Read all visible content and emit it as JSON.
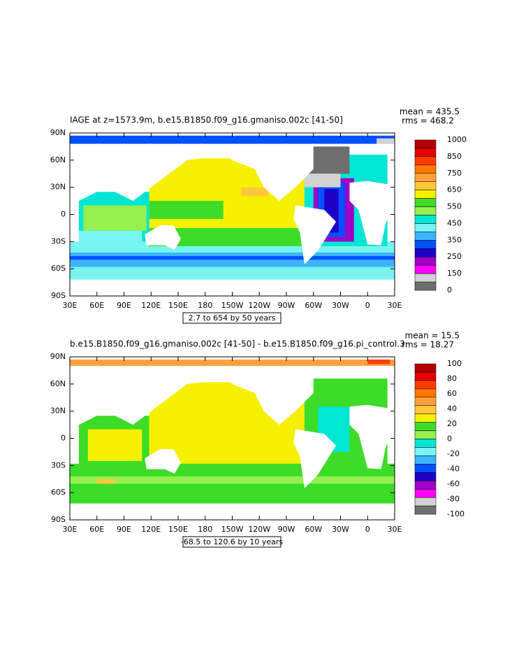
{
  "panels": [
    {
      "title": "IAGE at z=1573.9m, b.e15.B1850.f09_g16.gmaniso.002c [41-50]",
      "mean": "mean = 435.5",
      "rms": "rms = 468.2",
      "lat_labels": [
        "90N",
        "60N",
        "30N",
        "0",
        "30S",
        "60S",
        "90S"
      ],
      "lon_labels": [
        "30E",
        "60E",
        "90E",
        "120E",
        "150E",
        "180",
        "150W",
        "120W",
        "90W",
        "60W",
        "30W",
        "0",
        "30E"
      ],
      "info": "2.7 to 654 by 50 years",
      "colorbar_labels": [
        "1000",
        "850",
        "750",
        "650",
        "550",
        "450",
        "350",
        "250",
        "150",
        "0"
      ],
      "colors": [
        "#b40000",
        "#e60000",
        "#ff3c00",
        "#ff7800",
        "#ffa03c",
        "#ffc83c",
        "#f5f000",
        "#3cdc28",
        "#96f050",
        "#00e6d2",
        "#78f5f0",
        "#3cb4ff",
        "#0050ff",
        "#1e00c8",
        "#a000c8",
        "#ff00ff",
        "#d2d2d2",
        "#6e6e6e"
      ]
    },
    {
      "title": "b.e15.B1850.f09_g16.gmaniso.002c [41-50] - b.e15.B1850.f09_g16.pi_control.3",
      "mean": "mean = 15.5",
      "rms": "rms = 18.27",
      "lat_labels": [
        "90N",
        "60N",
        "30N",
        "0",
        "30S",
        "60S",
        "90S"
      ],
      "lon_labels": [
        "30E",
        "60E",
        "90E",
        "120E",
        "150E",
        "180",
        "150W",
        "120W",
        "90W",
        "60W",
        "30W",
        "0",
        "30E"
      ],
      "info": "-68.5 to 120.6 by 10 years",
      "colorbar_labels": [
        "100",
        "80",
        "60",
        "40",
        "20",
        "0",
        "-20",
        "-40",
        "-60",
        "-80",
        "-100"
      ],
      "colors": [
        "#b40000",
        "#e60000",
        "#ff3c00",
        "#ff7800",
        "#ffa03c",
        "#ffc83c",
        "#f5f000",
        "#3cdc28",
        "#96f050",
        "#00e6d2",
        "#78f5f0",
        "#3cb4ff",
        "#0050ff",
        "#1e00c8",
        "#a000c8",
        "#ff00ff",
        "#d2d2d2",
        "#6e6e6e"
      ]
    }
  ]
}
